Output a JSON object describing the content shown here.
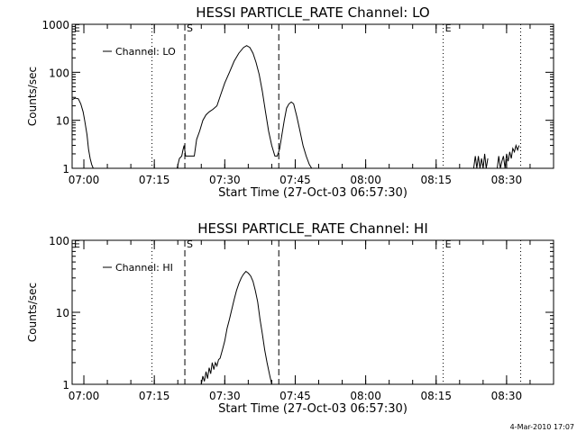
{
  "chart_data": [
    {
      "type": "line",
      "title": "HESSI PARTICLE_RATE Channel: LO",
      "xlabel": "Start Time (27-Oct-03 06:57:30)",
      "ylabel": "Counts/sec",
      "yscale": "log",
      "xlim": [
        "06:57:30",
        "08:40:00"
      ],
      "ylim": [
        1,
        1000
      ],
      "x_ticks": [
        "07:00",
        "07:15",
        "07:30",
        "07:45",
        "08:00",
        "08:15",
        "08:30"
      ],
      "y_ticks": [
        "1",
        "10",
        "100",
        "1000"
      ],
      "legend": {
        "placement": "top-left",
        "entries": [
          "Channel: LO"
        ]
      },
      "markers": [
        {
          "label": "E",
          "time": "06:57:30",
          "style": "dotted"
        },
        {
          "label": "",
          "time": "07:14:30",
          "style": "dotted"
        },
        {
          "label": "S",
          "time": "07:21:30",
          "style": "dashed"
        },
        {
          "label": "",
          "time": "07:41:30",
          "style": "dashed"
        },
        {
          "label": "E",
          "time": "08:16:30",
          "style": "dotted"
        },
        {
          "label": "",
          "time": "08:33:00",
          "style": "dotted"
        }
      ],
      "series": [
        {
          "name": "Channel: LO",
          "segments": [
            {
              "x": [
                "06:57:30",
                "06:58:10",
                "06:58:50",
                "06:59:20",
                "06:59:50",
                "07:00:10",
                "07:00:40",
                "07:01:00",
                "07:01:20",
                "07:01:40",
                "07:02:00"
              ],
              "y": [
                27,
                29,
                28,
                22,
                15,
                10,
                5,
                2.5,
                1.6,
                1.2,
                1
              ]
            },
            {
              "x": [
                "07:19:50",
                "07:20:20",
                "07:20:50",
                "07:21:05",
                "07:21:20",
                "07:21:40",
                "07:22:00",
                "07:22:30",
                "07:23:30",
                "07:24:00",
                "07:24:40",
                "07:25:20",
                "07:26:00",
                "07:26:40",
                "07:27:30",
                "07:28:20",
                "07:29:10",
                "07:30:00",
                "07:31:00",
                "07:32:00",
                "07:33:00",
                "07:34:00",
                "07:34:40",
                "07:35:20",
                "07:36:00",
                "07:36:40",
                "07:37:20",
                "07:38:00",
                "07:38:40",
                "07:39:20",
                "07:40:00",
                "07:40:40",
                "07:41:10",
                "07:41:40",
                "07:42:10",
                "07:42:40",
                "07:43:10",
                "07:43:40",
                "07:44:10",
                "07:44:40",
                "07:45:20",
                "07:46:00",
                "07:46:40",
                "07:47:20",
                "07:48:00",
                "07:48:30"
              ],
              "y": [
                1,
                1.6,
                1.8,
                2.4,
                3,
                1.8,
                1.8,
                1.8,
                1.8,
                4,
                6,
                10,
                13,
                15,
                17,
                20,
                35,
                60,
                100,
                170,
                250,
                330,
                360,
                330,
                250,
                160,
                90,
                40,
                15,
                6,
                3,
                1.8,
                1.8,
                2.5,
                5,
                10,
                18,
                22,
                24,
                22,
                12,
                6,
                3,
                1.8,
                1.2,
                1
              ]
            },
            {
              "x": [
                "08:23:00",
                "08:23:20",
                "08:23:40",
                "08:24:00",
                "08:24:20",
                "08:24:40",
                "08:25:00",
                "08:25:20",
                "08:25:40",
                "08:26:00"
              ],
              "y": [
                1,
                1.8,
                1,
                1.8,
                1,
                1.6,
                1,
                2,
                1,
                1.6
              ]
            },
            {
              "x": [
                "08:28:00",
                "08:28:20",
                "08:28:40",
                "08:29:00",
                "08:29:20",
                "08:29:40",
                "08:30:00",
                "08:30:20",
                "08:30:40",
                "08:31:00",
                "08:31:20",
                "08:31:40",
                "08:32:00",
                "08:32:20",
                "08:32:40"
              ],
              "y": [
                1,
                1.8,
                1,
                1.4,
                1.8,
                1,
                2,
                1.4,
                2.2,
                1.6,
                2.6,
                2.2,
                3,
                2.4,
                3
              ]
            }
          ]
        }
      ]
    },
    {
      "type": "line",
      "title": "HESSI PARTICLE_RATE Channel: HI",
      "xlabel": "Start Time (27-Oct-03 06:57:30)",
      "ylabel": "Counts/sec",
      "yscale": "log",
      "xlim": [
        "06:57:30",
        "08:40:00"
      ],
      "ylim": [
        1,
        100
      ],
      "x_ticks": [
        "07:00",
        "07:15",
        "07:30",
        "07:45",
        "08:00",
        "08:15",
        "08:30"
      ],
      "y_ticks": [
        "1",
        "10",
        "100"
      ],
      "legend": {
        "placement": "top-left",
        "entries": [
          "Channel: HI"
        ]
      },
      "markers": [
        {
          "label": "E",
          "time": "06:57:30",
          "style": "dotted"
        },
        {
          "label": "",
          "time": "07:14:30",
          "style": "dotted"
        },
        {
          "label": "S",
          "time": "07:21:30",
          "style": "dashed"
        },
        {
          "label": "",
          "time": "07:41:30",
          "style": "dashed"
        },
        {
          "label": "E",
          "time": "08:16:30",
          "style": "dotted"
        },
        {
          "label": "",
          "time": "08:33:00",
          "style": "dotted"
        }
      ],
      "series": [
        {
          "name": "Channel: HI",
          "segments": [
            {
              "x": [
                "07:25:00",
                "07:25:20",
                "07:25:40",
                "07:26:00",
                "07:26:20",
                "07:26:40",
                "07:27:00",
                "07:27:20",
                "07:27:40",
                "07:28:00",
                "07:28:20",
                "07:28:40",
                "07:29:00",
                "07:29:30",
                "07:30:00",
                "07:30:30",
                "07:31:00",
                "07:31:30",
                "07:32:00",
                "07:32:30",
                "07:33:00",
                "07:33:30",
                "07:34:00",
                "07:34:30",
                "07:35:00",
                "07:35:30",
                "07:36:00",
                "07:36:30",
                "07:37:00",
                "07:37:30",
                "07:38:00",
                "07:38:30",
                "07:39:00",
                "07:39:30",
                "07:40:00"
              ],
              "y": [
                1,
                1.3,
                1.1,
                1.5,
                1.2,
                1.7,
                1.4,
                2,
                1.6,
                2,
                1.8,
                2.2,
                2.3,
                3,
                4,
                6,
                8,
                11,
                15,
                20,
                25,
                30,
                34,
                37,
                35,
                32,
                27,
                20,
                14,
                8,
                5,
                3,
                2,
                1.4,
                1
              ]
            }
          ]
        }
      ]
    }
  ],
  "footer": {
    "stamp": "4-Mar-2010 17:07"
  }
}
